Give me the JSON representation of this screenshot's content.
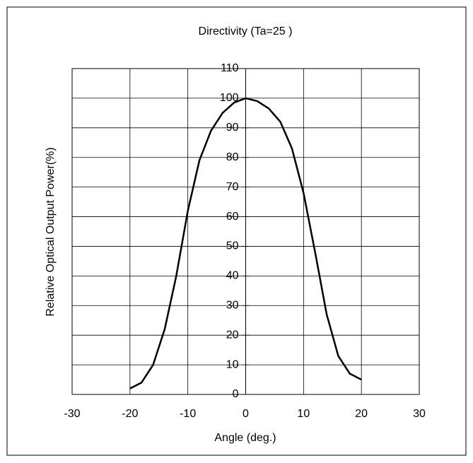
{
  "chart_data": {
    "type": "line",
    "title": "Directivity (Ta=25    )",
    "xlabel": "Angle (deg.)",
    "ylabel": "Relative Optical Output Power(%)",
    "x": [
      -20,
      -18,
      -16,
      -14,
      -12,
      -10,
      -8,
      -6,
      -4,
      -2,
      0,
      2,
      4,
      6,
      8,
      10,
      12,
      14,
      16,
      18,
      20
    ],
    "values": [
      2,
      4,
      10,
      22,
      40,
      62,
      79,
      89,
      95,
      98.5,
      100,
      99,
      96.5,
      92,
      83,
      68,
      48,
      27,
      13,
      7,
      5
    ],
    "color": "#000000",
    "xlim": [
      -30,
      30
    ],
    "xticks": [
      -30,
      -20,
      -10,
      0,
      10,
      20,
      30
    ],
    "ylim": [
      0,
      110
    ],
    "yticks": [
      0,
      10,
      20,
      30,
      40,
      50,
      60,
      70,
      80,
      90,
      100,
      110
    ],
    "grid": true
  }
}
